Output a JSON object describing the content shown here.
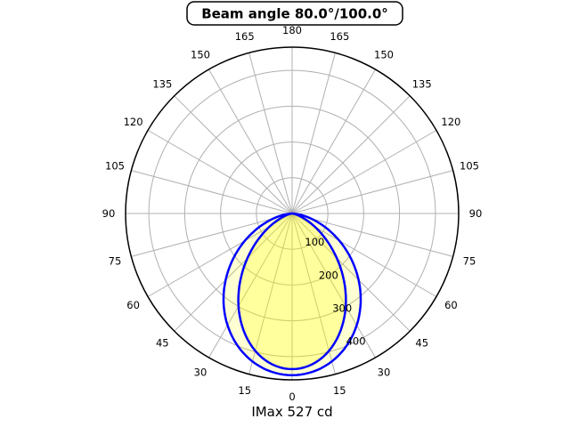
{
  "chart_data": {
    "type": "polar",
    "title": "Beam angle 80.0°/100.0°",
    "imax_label": "IMax 527 cd",
    "imax_cd": 527,
    "theta_zero": "bottom",
    "theta_tick_step_deg": 15,
    "theta_labels": [
      0,
      15,
      30,
      45,
      60,
      75,
      90,
      105,
      120,
      135,
      150,
      165,
      180
    ],
    "radial_ticks_cd": [
      100,
      200,
      300,
      400
    ],
    "radial_label_angle_deg": 22.5,
    "r_axis_max_cd": 465,
    "series": [
      {
        "name": "beam-100deg-plane",
        "beam_angle_deg": 100.0,
        "peak_cd": 452,
        "stroke": "#0000ff",
        "fill": "rgba(255,255,0,0.17)"
      },
      {
        "name": "beam-80deg-plane",
        "beam_angle_deg": 80.0,
        "peak_cd": 435,
        "stroke": "#0000ff",
        "fill": "rgba(255,255,0,0.26)"
      }
    ],
    "colors": {
      "background": "#ffffff",
      "grid": "#b0b0b0",
      "axis": "#000000",
      "curve": "#0000ff",
      "text": "#000000"
    }
  }
}
